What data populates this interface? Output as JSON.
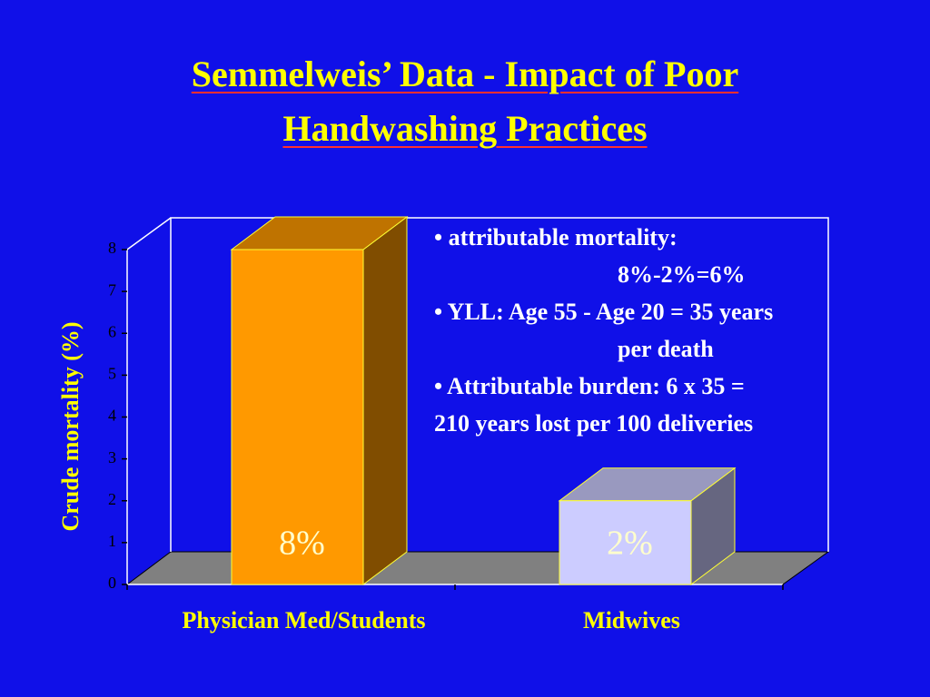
{
  "chart_data": {
    "type": "bar3d",
    "title": "Semmelweis’ Data - Impact of Poor Handwashing Practices",
    "y_label": "Crude mortality (%)",
    "categories": [
      "Physician Med/Students",
      "Midwives"
    ],
    "values": [
      8,
      2
    ],
    "value_labels": [
      "8%",
      "2%"
    ],
    "colors": [
      "#ff9900",
      "#ccccff"
    ],
    "ylim": [
      0,
      8
    ],
    "yticks": [
      0,
      1,
      2,
      3,
      4,
      5,
      6,
      7,
      8
    ],
    "annotations": [
      "• attributable mortality:",
      "8%-2%=6%",
      "• YLL: Age 55 - Age 20 = 35 years",
      "per death",
      "• Attributable burden: 6 x 35 =",
      "210 years lost per 100 deliveries"
    ]
  }
}
